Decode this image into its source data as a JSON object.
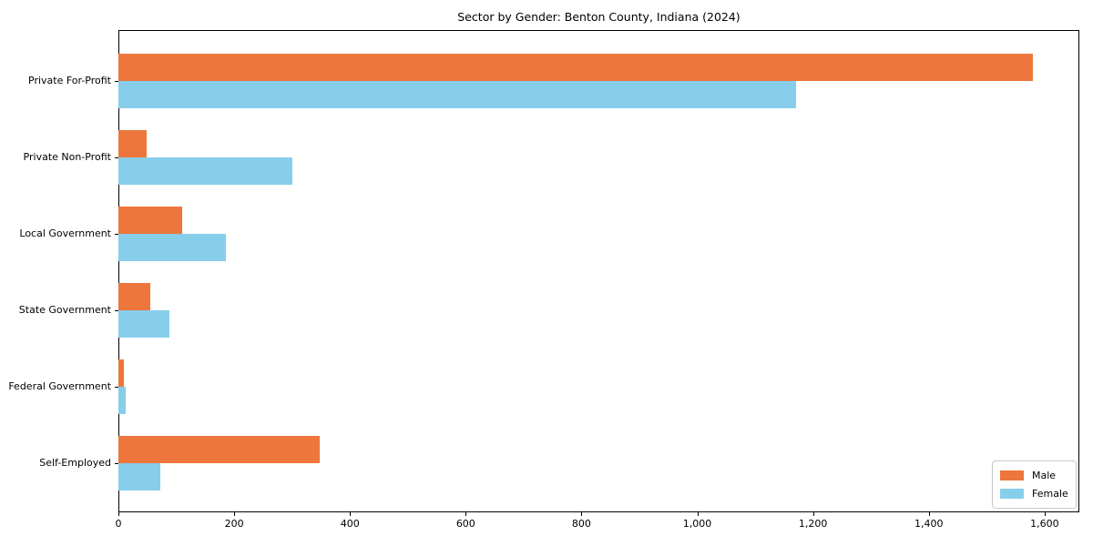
{
  "chart_data": {
    "type": "bar",
    "orientation": "horizontal",
    "title": "Sector by Gender: Benton County, Indiana (2024)",
    "categories": [
      "Private For-Profit",
      "Private Non-Profit",
      "Local Government",
      "State Government",
      "Federal Government",
      "Self-Employed"
    ],
    "series": [
      {
        "name": "Male",
        "color": "#ec763b",
        "values": [
          1580,
          48,
          110,
          55,
          10,
          348
        ]
      },
      {
        "name": "Female",
        "color": "#87ceeb",
        "values": [
          1170,
          300,
          185,
          88,
          12,
          73
        ]
      }
    ],
    "xlabel": "",
    "ylabel": "",
    "xlim": [
      0,
      1660
    ],
    "x_ticks": [
      0,
      200,
      400,
      600,
      800,
      1000,
      1200,
      1400,
      1600
    ],
    "x_tick_labels": [
      "0",
      "200",
      "400",
      "600",
      "800",
      "1,000",
      "1,200",
      "1,400",
      "1,600"
    ],
    "grid": false,
    "legend_position": "lower right",
    "frame_color": "#000000",
    "background_color": "#ffffff"
  }
}
